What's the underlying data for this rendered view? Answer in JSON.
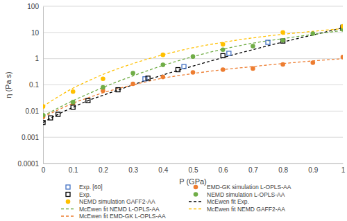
{
  "chart_data": {
    "type": "scatter",
    "log": "y",
    "grid": true,
    "legend": "bottom",
    "x_label": "P (GPa)",
    "y_label": "η (Pa s)",
    "xlim": [
      0,
      1
    ],
    "xticks": [
      0,
      0.1,
      0.2,
      0.3,
      0.4,
      0.5,
      0.6,
      0.7,
      0.8,
      0.9,
      1
    ],
    "ylim": [
      0.0001,
      100
    ],
    "yticks": [
      0.0001,
      0.001,
      0.01,
      0.1,
      1,
      10,
      100
    ],
    "series": [
      {
        "name": "Exp. [60]",
        "type": "scatter",
        "marker": "square-open",
        "color": "#4472c4",
        "x": [
          0.34,
          0.47,
          0.62,
          0.75,
          1.0
        ],
        "values": [
          0.17,
          0.5,
          1.6,
          4.2,
          16
        ]
      },
      {
        "name": "EMD-GK simulation L-OPLS-AA",
        "type": "scatter",
        "marker": "circle",
        "color": "#ed7d31",
        "x": [
          0,
          0.1,
          0.2,
          0.3,
          0.4,
          0.5,
          0.6,
          0.7,
          0.8,
          0.9,
          1.0
        ],
        "values": [
          0.006,
          0.02,
          0.06,
          0.11,
          0.2,
          0.3,
          0.38,
          0.42,
          0.6,
          0.7,
          1.15
        ]
      },
      {
        "name": "Exp.",
        "type": "scatter",
        "marker": "square-open",
        "color": "#000000",
        "x": [
          0,
          0.025,
          0.05,
          0.1,
          0.15,
          0.25,
          0.35,
          0.45,
          0.6,
          0.8,
          1.0
        ],
        "values": [
          0.0037,
          0.0055,
          0.0075,
          0.014,
          0.025,
          0.065,
          0.18,
          0.38,
          1.3,
          4.7,
          15
        ]
      },
      {
        "name": "NEMD simulation L-OPLS-AA",
        "type": "scatter",
        "marker": "circle",
        "color": "#70ad47",
        "x": [
          0,
          0.1,
          0.2,
          0.3,
          0.4,
          0.5,
          0.6,
          0.7,
          0.8,
          0.9,
          1.0
        ],
        "values": [
          0.007,
          0.022,
          0.08,
          0.28,
          0.58,
          1.2,
          2.2,
          3.0,
          5.0,
          9.0,
          13
        ]
      },
      {
        "name": "NEMD simulation GAFF2-AA",
        "type": "scatter",
        "marker": "circle",
        "color": "#ffc000",
        "x": [
          0,
          0.1,
          0.2,
          0.4,
          0.6,
          0.8,
          1.0
        ],
        "values": [
          0.015,
          0.055,
          0.17,
          1.4,
          3.5,
          10,
          17
        ]
      },
      {
        "name": "McEwen fit Exp.",
        "type": "line",
        "line_style": "dashed",
        "color": "#000000",
        "x": [
          0,
          0.05,
          0.1,
          0.15,
          0.2,
          0.3,
          0.4,
          0.5,
          0.6,
          0.7,
          0.8,
          0.9,
          1.0
        ],
        "values": [
          0.0037,
          0.0075,
          0.014,
          0.025,
          0.04,
          0.1,
          0.24,
          0.52,
          1.1,
          2.2,
          4.3,
          8,
          15
        ]
      },
      {
        "name": "McEwen fit NEMD L-OPLS-AA",
        "type": "line",
        "line_style": "dashed",
        "color": "#70ad47",
        "x": [
          0,
          0.05,
          0.1,
          0.15,
          0.2,
          0.3,
          0.4,
          0.5,
          0.6,
          0.7,
          0.8,
          0.9,
          1.0
        ],
        "values": [
          0.0065,
          0.013,
          0.025,
          0.045,
          0.08,
          0.22,
          0.55,
          1.2,
          2.3,
          3.9,
          5.8,
          8.4,
          12
        ]
      },
      {
        "name": "McEwen fit NEMD GAFF2-AA",
        "type": "line",
        "line_style": "dashed",
        "color": "#ffc000",
        "x": [
          0,
          0.05,
          0.1,
          0.15,
          0.2,
          0.3,
          0.4,
          0.5,
          0.6,
          0.7,
          0.8,
          0.9,
          1.0
        ],
        "values": [
          0.015,
          0.035,
          0.075,
          0.14,
          0.25,
          0.65,
          1.4,
          2.6,
          4.2,
          6.2,
          8.5,
          11,
          14
        ]
      },
      {
        "name": "McEwen fit EMD-GK L-OPLS-AA",
        "type": "line",
        "line_style": "dashed",
        "color": "#ed7d31",
        "x": [
          0,
          0.05,
          0.1,
          0.15,
          0.2,
          0.3,
          0.4,
          0.5,
          0.6,
          0.7,
          0.8,
          0.9,
          1.0
        ],
        "values": [
          0.006,
          0.011,
          0.02,
          0.032,
          0.05,
          0.1,
          0.18,
          0.27,
          0.38,
          0.5,
          0.65,
          0.82,
          1.0
        ]
      }
    ]
  }
}
